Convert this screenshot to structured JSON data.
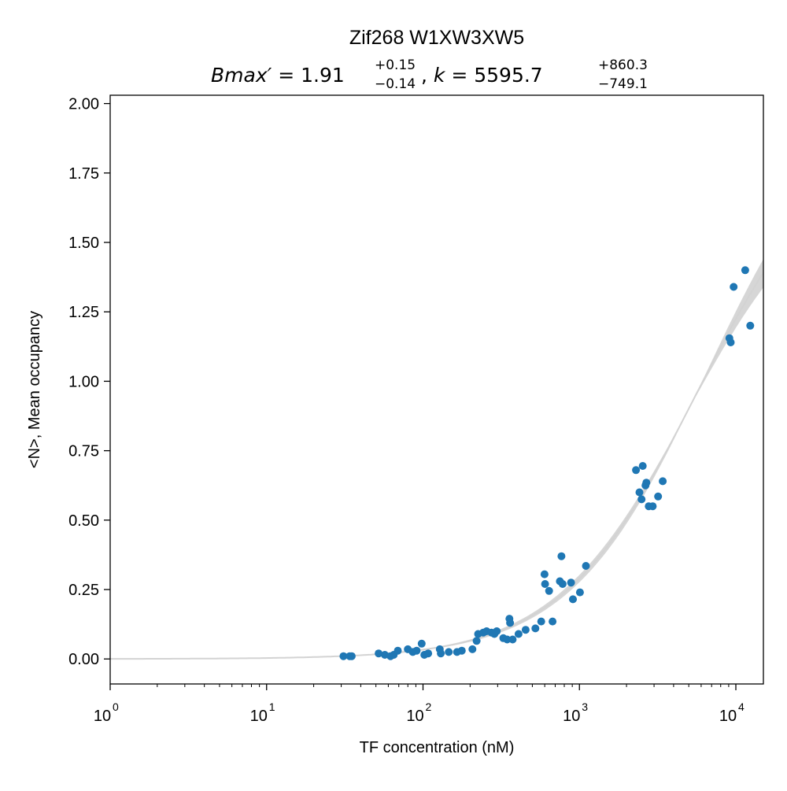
{
  "chart_data": {
    "type": "scatter",
    "title": "Zif268 W1XW3XW5",
    "subtitle": {
      "param1_name": "Bmax′",
      "param1_value": "1.91",
      "param1_upper": "+0.15",
      "param1_lower": "−0.14",
      "param2_name": "k",
      "param2_value": "5595.7",
      "param2_upper": "+860.3",
      "param2_lower": "−749.1"
    },
    "xlabel": "TF concentration (nM)",
    "ylabel": "<N>, Mean occupancy",
    "xscale": "log",
    "xlim": [
      1,
      15000
    ],
    "ylim": [
      -0.09,
      2.03
    ],
    "x_ticks": [
      {
        "value": 1,
        "base": "10",
        "exp": "0"
      },
      {
        "value": 10,
        "base": "10",
        "exp": "1"
      },
      {
        "value": 100,
        "base": "10",
        "exp": "2"
      },
      {
        "value": 1000,
        "base": "10",
        "exp": "3"
      },
      {
        "value": 10000,
        "base": "10",
        "exp": "4"
      }
    ],
    "y_ticks": [
      {
        "value": 0.0,
        "label": "0.00"
      },
      {
        "value": 0.25,
        "label": "0.25"
      },
      {
        "value": 0.5,
        "label": "0.50"
      },
      {
        "value": 0.75,
        "label": "0.75"
      },
      {
        "value": 1.0,
        "label": "1.00"
      },
      {
        "value": 1.25,
        "label": "1.25"
      },
      {
        "value": 1.5,
        "label": "1.50"
      },
      {
        "value": 1.75,
        "label": "1.75"
      },
      {
        "value": 2.0,
        "label": "2.00"
      }
    ],
    "grid": false,
    "colors": {
      "points": "#1f77b4",
      "fit_band": "#c0c0c0",
      "fit_line": "#d3d3d3"
    },
    "fit": {
      "model": "Bmax' * x / (k + x)",
      "Bmax": 1.91,
      "Bmax_low": 1.77,
      "Bmax_high": 2.06,
      "k": 5595.7,
      "k_low": 4846.6,
      "k_high": 6456.0
    },
    "points": [
      {
        "x": 31,
        "y": 0.01
      },
      {
        "x": 34,
        "y": 0.01
      },
      {
        "x": 35,
        "y": 0.01
      },
      {
        "x": 52,
        "y": 0.02
      },
      {
        "x": 57,
        "y": 0.015
      },
      {
        "x": 62,
        "y": 0.01
      },
      {
        "x": 65,
        "y": 0.015
      },
      {
        "x": 69,
        "y": 0.03
      },
      {
        "x": 80,
        "y": 0.035
      },
      {
        "x": 86,
        "y": 0.025
      },
      {
        "x": 91,
        "y": 0.03
      },
      {
        "x": 98,
        "y": 0.055
      },
      {
        "x": 102,
        "y": 0.015
      },
      {
        "x": 108,
        "y": 0.02
      },
      {
        "x": 128,
        "y": 0.035
      },
      {
        "x": 130,
        "y": 0.02
      },
      {
        "x": 146,
        "y": 0.025
      },
      {
        "x": 165,
        "y": 0.025
      },
      {
        "x": 177,
        "y": 0.03
      },
      {
        "x": 207,
        "y": 0.035
      },
      {
        "x": 220,
        "y": 0.065
      },
      {
        "x": 225,
        "y": 0.09
      },
      {
        "x": 243,
        "y": 0.095
      },
      {
        "x": 255,
        "y": 0.1
      },
      {
        "x": 274,
        "y": 0.095
      },
      {
        "x": 286,
        "y": 0.09
      },
      {
        "x": 296,
        "y": 0.1
      },
      {
        "x": 326,
        "y": 0.075
      },
      {
        "x": 345,
        "y": 0.07
      },
      {
        "x": 357,
        "y": 0.145
      },
      {
        "x": 360,
        "y": 0.13
      },
      {
        "x": 374,
        "y": 0.07
      },
      {
        "x": 408,
        "y": 0.09
      },
      {
        "x": 453,
        "y": 0.105
      },
      {
        "x": 523,
        "y": 0.11
      },
      {
        "x": 570,
        "y": 0.135
      },
      {
        "x": 598,
        "y": 0.305
      },
      {
        "x": 603,
        "y": 0.27
      },
      {
        "x": 640,
        "y": 0.245
      },
      {
        "x": 673,
        "y": 0.135
      },
      {
        "x": 750,
        "y": 0.28
      },
      {
        "x": 767,
        "y": 0.37
      },
      {
        "x": 781,
        "y": 0.27
      },
      {
        "x": 884,
        "y": 0.275
      },
      {
        "x": 909,
        "y": 0.215
      },
      {
        "x": 1008,
        "y": 0.24
      },
      {
        "x": 1100,
        "y": 0.335
      },
      {
        "x": 2300,
        "y": 0.68
      },
      {
        "x": 2418,
        "y": 0.6
      },
      {
        "x": 2495,
        "y": 0.575
      },
      {
        "x": 2540,
        "y": 0.695
      },
      {
        "x": 2646,
        "y": 0.625
      },
      {
        "x": 2680,
        "y": 0.635
      },
      {
        "x": 2773,
        "y": 0.55
      },
      {
        "x": 2943,
        "y": 0.55
      },
      {
        "x": 3185,
        "y": 0.585
      },
      {
        "x": 3407,
        "y": 0.64
      },
      {
        "x": 9091,
        "y": 1.155
      },
      {
        "x": 9273,
        "y": 1.14
      },
      {
        "x": 9680,
        "y": 1.34
      },
      {
        "x": 11476,
        "y": 1.4
      },
      {
        "x": 12366,
        "y": 1.2
      }
    ]
  }
}
